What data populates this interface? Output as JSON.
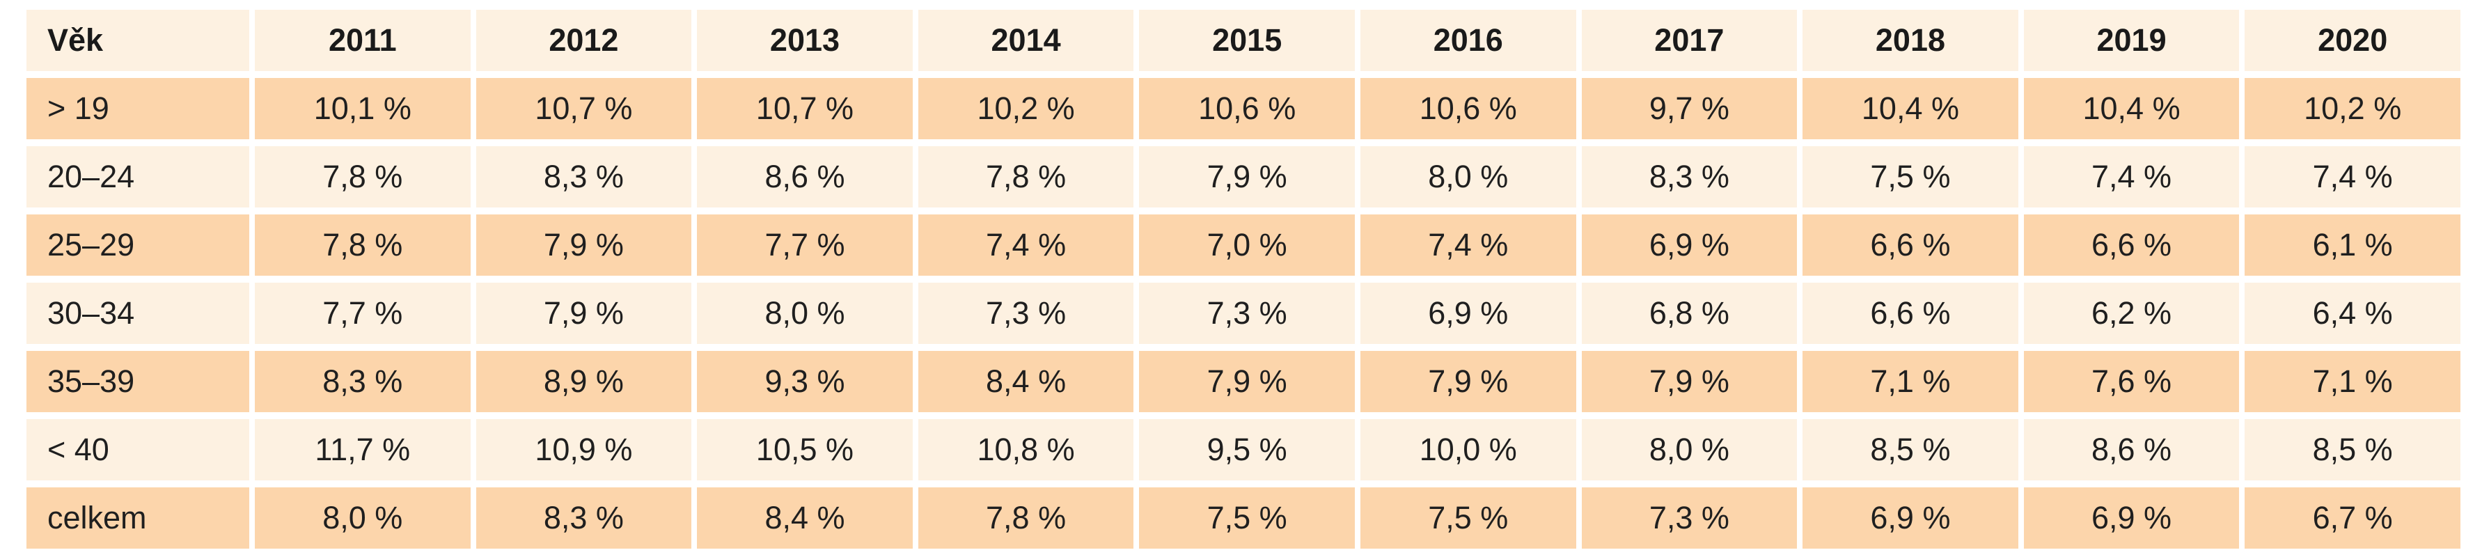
{
  "table": {
    "columns": [
      "Věk",
      "2011",
      "2012",
      "2013",
      "2014",
      "2015",
      "2016",
      "2017",
      "2018",
      "2019",
      "2020"
    ],
    "rows": [
      [
        "> 19",
        "10,1 %",
        "10,7 %",
        "10,7 %",
        "10,2 %",
        "10,6 %",
        "10,6 %",
        "9,7 %",
        "10,4 %",
        "10,4 %",
        "10,2 %"
      ],
      [
        "20–24",
        "7,8 %",
        "8,3 %",
        "8,6 %",
        "7,8 %",
        "7,9 %",
        "8,0 %",
        "8,3 %",
        "7,5 %",
        "7,4 %",
        "7,4 %"
      ],
      [
        "25–29",
        "7,8 %",
        "7,9 %",
        "7,7 %",
        "7,4 %",
        "7,0 %",
        "7,4 %",
        "6,9 %",
        "6,6 %",
        "6,6 %",
        "6,1 %"
      ],
      [
        "30–34",
        "7,7 %",
        "7,9 %",
        "8,0 %",
        "7,3 %",
        "7,3 %",
        "6,9 %",
        "6,8 %",
        "6,6 %",
        "6,2 %",
        "6,4 %"
      ],
      [
        "35–39",
        "8,3 %",
        "8,9 %",
        "9,3 %",
        "8,4 %",
        "7,9 %",
        "7,9 %",
        "7,9 %",
        "7,1 %",
        "7,6 %",
        "7,1 %"
      ],
      [
        "< 40",
        "11,7 %",
        "10,9 %",
        "10,5 %",
        "10,8 %",
        "9,5 %",
        "10,0 %",
        "8,0 %",
        "8,5 %",
        "8,6 %",
        "8,5 %"
      ],
      [
        "celkem",
        "8,0 %",
        "8,3 %",
        "8,4 %",
        "7,8 %",
        "7,5 %",
        "7,5 %",
        "7,3 %",
        "6,9 %",
        "6,9 %",
        "6,7 %"
      ]
    ]
  },
  "colors": {
    "header_row": "#fdf1e1",
    "shaded_row": "#fcd5ab",
    "plain_row": "#fdf1e1"
  }
}
